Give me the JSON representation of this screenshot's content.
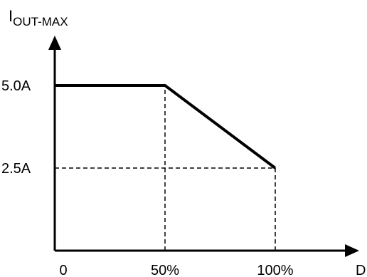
{
  "chart_data": {
    "type": "line",
    "title": "",
    "xlabel": "D",
    "ylabel_main": "I",
    "ylabel_sub": "OUT-MAX",
    "x_ticks": [
      "0",
      "50%",
      "100%"
    ],
    "y_ticks": [
      "2.5A",
      "5.0A"
    ],
    "xlim": [
      0,
      100
    ],
    "ylim": [
      0,
      5.0
    ],
    "grid": false,
    "series": [
      {
        "x": [
          0,
          50,
          100
        ],
        "y": [
          5.0,
          5.0,
          2.5
        ]
      }
    ],
    "reference_lines": [
      {
        "type": "vertical",
        "x": 50,
        "y_to": 5.0
      },
      {
        "type": "vertical",
        "x": 100,
        "y_to": 2.5
      },
      {
        "type": "horizontal",
        "y": 2.5,
        "x_to": 100
      }
    ]
  }
}
